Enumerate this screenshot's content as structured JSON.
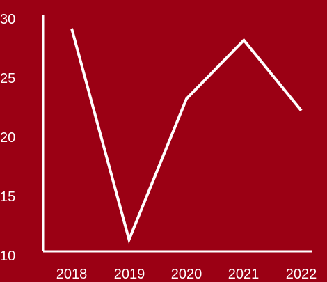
{
  "chart_data": {
    "type": "line",
    "categories": [
      "2018",
      "2019",
      "2020",
      "2021",
      "2022"
    ],
    "series": [
      {
        "values": [
          29,
          11,
          23,
          28,
          22
        ]
      }
    ],
    "yticks": [
      "10",
      "15",
      "20",
      "25",
      "30"
    ],
    "ylim": [
      10,
      30
    ],
    "grid": false,
    "legend": "none",
    "colors": {
      "background": "#9b0014",
      "line": "#ffffff",
      "axis": "#ffffff",
      "text": "#ffffff"
    }
  }
}
